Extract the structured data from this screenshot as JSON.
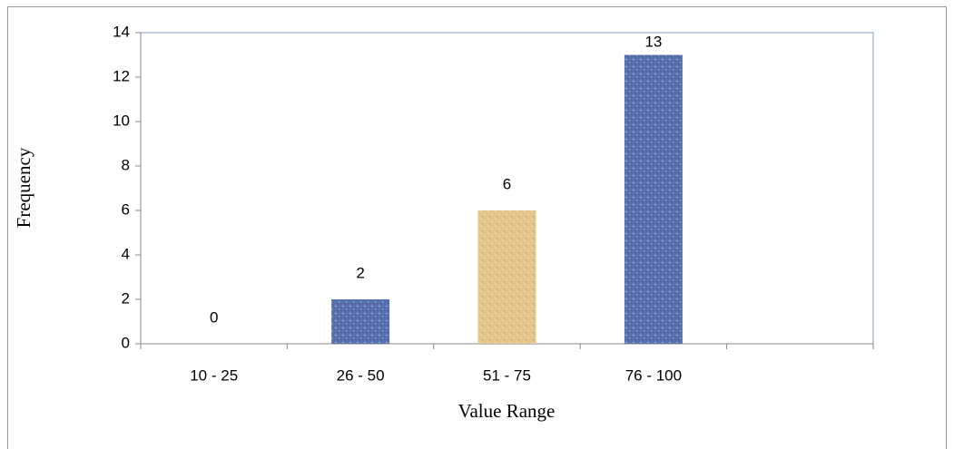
{
  "chart_data": {
    "type": "bar",
    "x_label": "Value Range",
    "y_label": "Frequency",
    "categories": [
      "10 - 25",
      "26 - 50",
      "51 - 75",
      "76 - 100",
      null
    ],
    "values": [
      0,
      2,
      6,
      13,
      null
    ],
    "colors": [
      "#5671ad",
      "#5671ad",
      "#e3c589",
      "#5671ad",
      null
    ],
    "ylim": [
      0,
      14
    ],
    "yticks": [
      0,
      2,
      4,
      6,
      8,
      10,
      12,
      14
    ],
    "grid": false
  }
}
